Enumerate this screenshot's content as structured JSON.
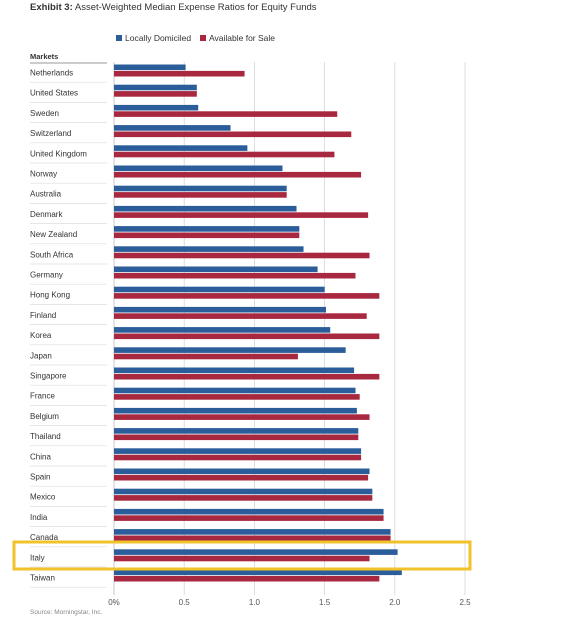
{
  "title_prefix": "Exhibit 3:",
  "title_rest": " Asset-Weighted Median Expense Ratios for Equity Funds",
  "source": "Source: Morningstar, Inc.",
  "colors": {
    "local": "#2a5d99",
    "sale": "#a8283f",
    "highlight": "#f2c22b",
    "grid": "#d6d6d6",
    "text": "#333333",
    "subtle": "#888888"
  },
  "chart_data": {
    "type": "bar",
    "orientation": "horizontal",
    "category_header": "Markets",
    "categories": [
      "Netherlands",
      "United States",
      "Sweden",
      "Switzerland",
      "United Kingdom",
      "Norway",
      "Australia",
      "Denmark",
      "New Zealand",
      "South Africa",
      "Germany",
      "Hong Kong",
      "Finland",
      "Korea",
      "Japan",
      "Singapore",
      "France",
      "Belgium",
      "Thailand",
      "China",
      "Spain",
      "Mexico",
      "India",
      "Canada",
      "Italy",
      "Taiwan"
    ],
    "series": [
      {
        "name": "Locally Domiciled",
        "color": "#2a5d99",
        "values": [
          0.51,
          0.59,
          0.6,
          0.83,
          0.95,
          1.2,
          1.23,
          1.3,
          1.32,
          1.35,
          1.45,
          1.5,
          1.51,
          1.54,
          1.65,
          1.71,
          1.72,
          1.73,
          1.74,
          1.76,
          1.82,
          1.84,
          1.92,
          1.97,
          2.02,
          2.05
        ]
      },
      {
        "name": "Available for Sale",
        "color": "#a8283f",
        "values": [
          0.93,
          0.59,
          1.59,
          1.69,
          1.57,
          1.76,
          1.23,
          1.81,
          1.32,
          1.82,
          1.72,
          1.89,
          1.8,
          1.89,
          1.31,
          1.89,
          1.75,
          1.82,
          1.74,
          1.76,
          1.81,
          1.84,
          1.92,
          1.97,
          1.82,
          1.89
        ]
      }
    ],
    "x_ticks": [
      "0%",
      "0.5",
      "1.0",
      "1.5",
      "2.0",
      "2.5"
    ],
    "x_tick_values": [
      0,
      0.5,
      1.0,
      1.5,
      2.0,
      2.5
    ],
    "xlim": [
      0,
      2.5
    ],
    "grid": "vertical",
    "legend_position": "top",
    "highlighted_category": "Italy"
  }
}
